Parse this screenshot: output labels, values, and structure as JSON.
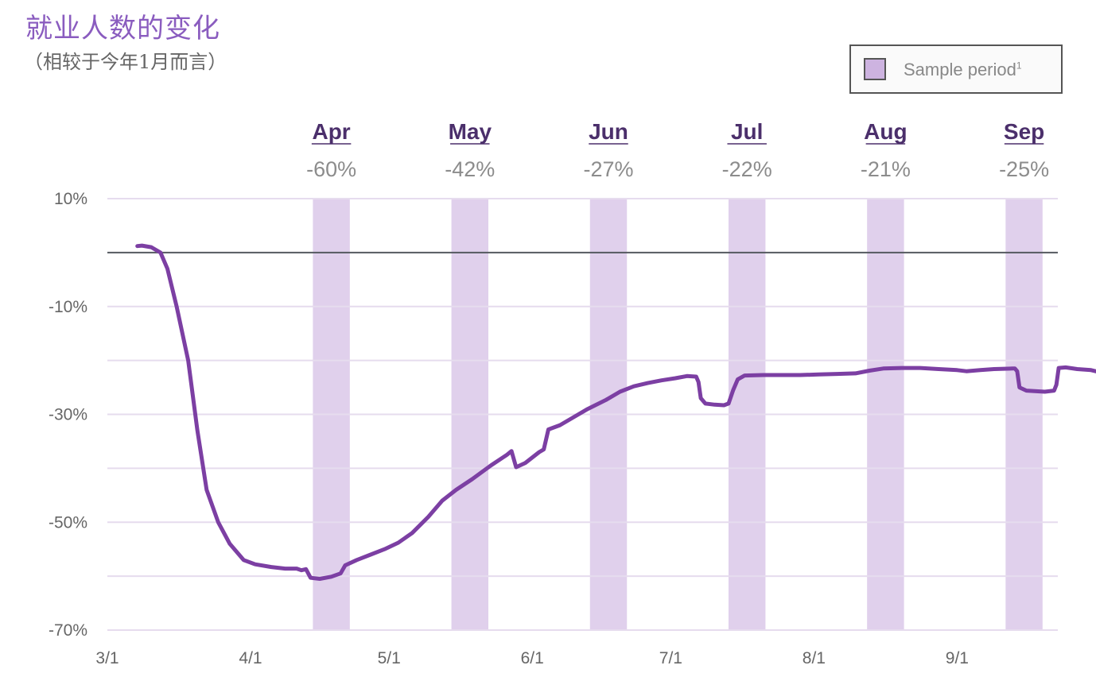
{
  "chart_data": {
    "type": "line",
    "title": "就业人数的变化",
    "subtitle": "（相较于今年1月而言）",
    "legend": {
      "label": "Sample period",
      "superscript": "1",
      "color": "#cdb3e0",
      "position": "top-right"
    },
    "ylim": [
      -70,
      10
    ],
    "yticks": [
      "10%",
      "-10%",
      "-30%",
      "-50%",
      "-70%"
    ],
    "ytick_values": [
      10,
      -10,
      -30,
      -50,
      -70
    ],
    "xticks": [
      "3/1",
      "4/1",
      "5/1",
      "6/1",
      "7/1",
      "8/1",
      "9/1"
    ],
    "xtick_days": [
      0,
      31,
      61,
      92,
      122,
      153,
      184
    ],
    "xlim_days": [
      0,
      204
    ],
    "grid": true,
    "zero_line": true,
    "colors": {
      "line": "#7c3fa3",
      "band": "#e0d0ec",
      "grid": "#e6dcee",
      "zero": "#555a60"
    },
    "sample_periods": [
      {
        "label": "Apr",
        "value": "-60%",
        "start_day": 44.5,
        "end_day": 52.5
      },
      {
        "label": "May",
        "value": "-42%",
        "start_day": 74.5,
        "end_day": 82.5
      },
      {
        "label": "Jun",
        "value": "-27%",
        "start_day": 104.5,
        "end_day": 112.5
      },
      {
        "label": "Jul",
        "value": "-22%",
        "start_day": 134.5,
        "end_day": 142.5
      },
      {
        "label": "Aug",
        "value": "-21%",
        "start_day": 164.5,
        "end_day": 172.5
      },
      {
        "label": "Sep",
        "value": "-25%",
        "start_day": 194.5,
        "end_day": 202.5
      }
    ],
    "series": [
      {
        "color": "#7c3fa3",
        "points": [
          [
            6.5,
            1.2
          ],
          [
            7.5,
            1.3
          ],
          [
            9.5,
            1.0
          ],
          [
            11.5,
            0.0
          ],
          [
            13,
            -3
          ],
          [
            15,
            -10
          ],
          [
            17.5,
            -20
          ],
          [
            19.5,
            -33
          ],
          [
            21.5,
            -44
          ],
          [
            24,
            -50
          ],
          [
            26.5,
            -54
          ],
          [
            29.5,
            -57
          ],
          [
            32,
            -57.8
          ],
          [
            35.5,
            -58.3
          ],
          [
            38.5,
            -58.6
          ],
          [
            41,
            -58.6
          ],
          [
            42,
            -58.9
          ],
          [
            43,
            -58.7
          ],
          [
            44,
            -60.3
          ],
          [
            46,
            -60.5
          ],
          [
            48.5,
            -60.1
          ],
          [
            50.5,
            -59.5
          ],
          [
            51.5,
            -58
          ],
          [
            54,
            -57
          ],
          [
            57,
            -56
          ],
          [
            60,
            -55
          ],
          [
            63,
            -53.8
          ],
          [
            66,
            -52
          ],
          [
            69.5,
            -49
          ],
          [
            72.5,
            -46
          ],
          [
            75.5,
            -44
          ],
          [
            79,
            -42
          ],
          [
            83,
            -39.5
          ],
          [
            86.5,
            -37.5
          ],
          [
            87.5,
            -36.8
          ],
          [
            88.5,
            -39.8
          ],
          [
            90.5,
            -39
          ],
          [
            93.5,
            -37
          ],
          [
            94.5,
            -36.5
          ],
          [
            95.5,
            -32.8
          ],
          [
            98,
            -32
          ],
          [
            101,
            -30.5
          ],
          [
            104,
            -29
          ],
          [
            108,
            -27.3
          ],
          [
            111,
            -25.8
          ],
          [
            114,
            -24.8
          ],
          [
            117,
            -24.2
          ],
          [
            120,
            -23.7
          ],
          [
            123,
            -23.3
          ],
          [
            125.5,
            -22.9
          ],
          [
            127.5,
            -23
          ],
          [
            128,
            -24
          ],
          [
            128.5,
            -27
          ],
          [
            129.5,
            -28
          ],
          [
            131.5,
            -28.2
          ],
          [
            133.5,
            -28.3
          ],
          [
            134.5,
            -28
          ],
          [
            135.5,
            -25.5
          ],
          [
            136.5,
            -23.5
          ],
          [
            138,
            -22.8
          ],
          [
            142,
            -22.7
          ],
          [
            146,
            -22.7
          ],
          [
            150,
            -22.7
          ],
          [
            154,
            -22.6
          ],
          [
            158,
            -22.5
          ],
          [
            162,
            -22.4
          ],
          [
            165,
            -21.9
          ],
          [
            168,
            -21.5
          ],
          [
            172,
            -21.4
          ],
          [
            176,
            -21.4
          ],
          [
            180,
            -21.6
          ],
          [
            184,
            -21.8
          ],
          [
            186,
            -22.0
          ],
          [
            189,
            -21.8
          ],
          [
            192,
            -21.6
          ],
          [
            196,
            -21.5
          ],
          [
            196.5,
            -21.5
          ],
          [
            197,
            -22
          ],
          [
            197.5,
            -25
          ],
          [
            199,
            -25.6
          ],
          [
            203,
            -25.8
          ],
          [
            205,
            -25.6
          ],
          [
            205.5,
            -24.5
          ],
          [
            206,
            -21.4
          ],
          [
            207.5,
            -21.3
          ],
          [
            210,
            -21.6
          ],
          [
            213,
            -21.8
          ],
          [
            215,
            -22.2
          ],
          [
            216,
            -22.7
          ]
        ]
      }
    ]
  }
}
